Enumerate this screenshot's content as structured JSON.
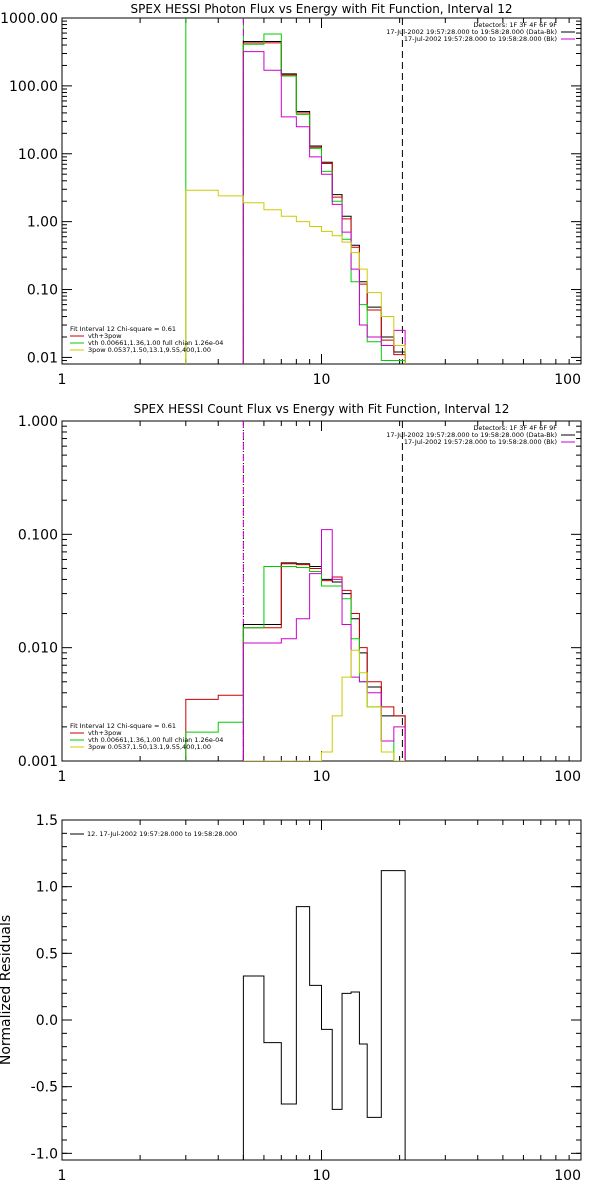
{
  "chart_data": [
    {
      "type": "line",
      "step": true,
      "title": "SPEX HESSI Photon Flux vs Energy with Fit Function, Interval 12",
      "xlabel": "",
      "ylabel": "",
      "xscale": "log",
      "yscale": "log",
      "xlim": [
        1,
        100
      ],
      "ylim": [
        0.008,
        1000
      ],
      "x_ticks": [
        {
          "v": 1,
          "label": "1"
        },
        {
          "v": 10,
          "label": "10"
        },
        {
          "v": 100,
          "label": "100"
        }
      ],
      "y_ticks": [
        {
          "v": 0.01,
          "label": "0.01"
        },
        {
          "v": 0.1,
          "label": "0.10"
        },
        {
          "v": 1,
          "label": "1.00"
        },
        {
          "v": 10,
          "label": "10.00"
        },
        {
          "v": 100,
          "label": "100.00"
        },
        {
          "v": 1000,
          "label": "1000.00"
        }
      ],
      "info_lines": [
        "Detectors: 1F 3F 4F 6F 9F",
        "17-Jul-2002 19:57:28.000 to 19:58:28.000 (Data-Bk)",
        "17-Jul-2002 19:57:28.000 to 19:58:28.000 (Bk)"
      ],
      "info_colors": [
        "#000000",
        "#000000",
        "#cc00cc"
      ],
      "fit_lines": [
        "Fit Interval 12   Chi-square = 0.61",
        "vth+3pow",
        "vth 0.00661,1.36,1.00  full chian 1.26e-04",
        "3pow 0.0537,1.50,13.1,9.55,400,1.00"
      ],
      "fit_colors": [
        "#000000",
        "#cc0000",
        "#00cc00",
        "#cccc00"
      ],
      "vlines": [
        {
          "x": 3.0,
          "style": "solid",
          "color": "#00cc00"
        },
        {
          "x": 5.0,
          "style": "solid",
          "color": "#00cc00"
        },
        {
          "x": 5.0,
          "style": "dashed",
          "color": "#cc00cc"
        },
        {
          "x": 20.5,
          "style": "dashed",
          "color": "#000000"
        }
      ],
      "edges": [
        5,
        6,
        7,
        8,
        9,
        10,
        11,
        12,
        13,
        14,
        15,
        17,
        19,
        21
      ],
      "series": [
        {
          "color": "#000000",
          "values": [
            450,
            450,
            150,
            42,
            13,
            7.5,
            2.5,
            1.2,
            0.45,
            0.13,
            0.055,
            0.02,
            0.012
          ]
        },
        {
          "color": "#cc0000",
          "values": [
            430,
            430,
            145,
            40,
            12.5,
            7.2,
            2.3,
            1.1,
            0.42,
            0.12,
            0.05,
            0.018,
            0.011
          ]
        },
        {
          "color": "#00cc00",
          "values": [
            410,
            580,
            140,
            38,
            12,
            5.5,
            2.0,
            0.55,
            0.13,
            0.06,
            0.017,
            0.009,
            0.009
          ]
        },
        {
          "color": "#cc00cc",
          "values": [
            320,
            170,
            35,
            25,
            9,
            5,
            1.8,
            0.7,
            0.2,
            0.03,
            0.02,
            0.015,
            0.025
          ]
        },
        {
          "color": "#cccc00",
          "edges": [
            3,
            4,
            5,
            6,
            7,
            8,
            9,
            10,
            11,
            12,
            13,
            14,
            15,
            17,
            19,
            21
          ],
          "values": [
            2.9,
            2.4,
            1.9,
            1.5,
            1.2,
            1.0,
            0.85,
            0.72,
            0.62,
            0.5,
            0.35,
            0.2,
            0.09,
            0.04,
            0.015
          ]
        }
      ]
    },
    {
      "type": "line",
      "step": true,
      "title": "SPEX HESSI Count Flux vs Energy with Fit Function, Interval 12",
      "xlabel": "",
      "ylabel": "",
      "xscale": "log",
      "yscale": "log",
      "xlim": [
        1,
        100
      ],
      "ylim": [
        0.001,
        1.0
      ],
      "x_ticks": [
        {
          "v": 1,
          "label": "1"
        },
        {
          "v": 10,
          "label": "10"
        },
        {
          "v": 100,
          "label": "100"
        }
      ],
      "y_ticks": [
        {
          "v": 0.001,
          "label": "0.001"
        },
        {
          "v": 0.01,
          "label": "0.010"
        },
        {
          "v": 0.1,
          "label": "0.100"
        },
        {
          "v": 1,
          "label": "1.000"
        }
      ],
      "info_lines": [
        "Detectors: 1F 3F 4F 6F 9F",
        "17-Jul-2002 19:57:28.000 to 19:58:28.000 (Data-Bk)",
        "17-Jul-2002 19:57:28.000 to 19:58:28.000 (Bk)"
      ],
      "info_colors": [
        "#000000",
        "#000000",
        "#cc00cc"
      ],
      "fit_lines": [
        "Fit Interval 12   Chi-square = 0.61",
        "vth+3pow",
        "vth 0.00661,1.36,1.00  full chian 1.26e-04",
        "3pow 0.0537,1.50,13.1,9.55,400,1.00"
      ],
      "fit_colors": [
        "#000000",
        "#cc0000",
        "#00cc00",
        "#cccc00"
      ],
      "vlines": [
        {
          "x": 5.0,
          "style": "dotted",
          "color": "#000000"
        },
        {
          "x": 5.0,
          "style": "dashed",
          "color": "#cc00cc"
        },
        {
          "x": 20.5,
          "style": "dashed",
          "color": "#000000"
        }
      ],
      "edges": [
        5,
        6,
        7,
        8,
        9,
        10,
        11,
        12,
        13,
        14,
        15,
        17,
        19,
        21
      ],
      "series": [
        {
          "color": "#000000",
          "values": [
            0.016,
            0.016,
            0.056,
            0.055,
            0.052,
            0.04,
            0.038,
            0.03,
            0.018,
            0.009,
            0.0045,
            0.0025,
            0.0025
          ]
        },
        {
          "color": "#cc0000",
          "x_from": 3,
          "values": [
            0.0035,
            0.0038,
            0.015,
            0.015,
            0.055,
            0.054,
            0.05,
            0.039,
            0.042,
            0.032,
            0.02,
            0.01,
            0.005,
            0.003,
            0.0025
          ]
        },
        {
          "color": "#00cc00",
          "x_from": 3,
          "values": [
            0.0018,
            0.0022,
            0.015,
            0.052,
            0.052,
            0.051,
            0.047,
            0.035,
            0.035,
            0.027,
            0.012,
            0.005,
            0.003,
            0.0015,
            0.001
          ]
        },
        {
          "color": "#cc00cc",
          "values": [
            0.011,
            0.011,
            0.012,
            0.018,
            0.045,
            0.11,
            0.04,
            0.016,
            0.0055,
            0.005,
            0.004,
            0.0015,
            0.002
          ]
        },
        {
          "color": "#cccc00",
          "values": [
            0.0009,
            0.0009,
            0.0009,
            0.0009,
            0.0009,
            0.0012,
            0.0025,
            0.0055,
            0.0095,
            0.006,
            0.003,
            0.0012,
            0.0008
          ]
        }
      ]
    },
    {
      "type": "line",
      "step": true,
      "title": "",
      "xlabel": "",
      "ylabel": "Normalized Residuals",
      "xscale": "log",
      "yscale": "linear",
      "xlim": [
        1,
        100
      ],
      "ylim": [
        -1.05,
        1.5
      ],
      "x_ticks": [
        {
          "v": 1,
          "label": "1"
        },
        {
          "v": 10,
          "label": "10"
        },
        {
          "v": 100,
          "label": "100"
        }
      ],
      "y_ticks": [
        {
          "v": -1.0,
          "label": "-1.0"
        },
        {
          "v": -0.5,
          "label": "-0.5"
        },
        {
          "v": 0.0,
          "label": "0.0"
        },
        {
          "v": 0.5,
          "label": "0.5"
        },
        {
          "v": 1.0,
          "label": "1.0"
        },
        {
          "v": 1.5,
          "label": "1.5"
        }
      ],
      "legend": "12. 17-Jul-2002 19:57:28.000 to 19:58:28.000",
      "edges": [
        5,
        6,
        7,
        8,
        9,
        10,
        11,
        12,
        13,
        14,
        15,
        17,
        19,
        21
      ],
      "series": [
        {
          "color": "#000000",
          "drop_to": -1.05,
          "values": [
            0.33,
            -0.17,
            -0.63,
            0.85,
            0.26,
            -0.07,
            -0.67,
            0.2,
            0.21,
            -0.18,
            -0.73,
            1.12,
            1.12
          ]
        }
      ]
    }
  ]
}
